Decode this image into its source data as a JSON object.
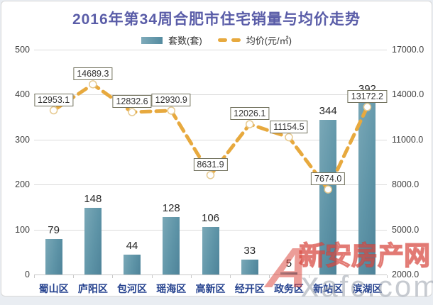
{
  "watermark": {
    "logo_letter": "A",
    "brand": "新安房产网",
    "domain": "xafc.com"
  },
  "chart_data": {
    "type": "bar",
    "title": "2016年第34周合肥市住宅销量与均价走势",
    "title_color": "#5a5da8",
    "categories": [
      "蜀山区",
      "庐阳区",
      "包河区",
      "瑶海区",
      "高新区",
      "经开区",
      "政务区",
      "新站区",
      "滨湖区"
    ],
    "series": [
      {
        "name": "套数(套)",
        "type": "bar",
        "axis": "left",
        "color": "#5F95A8",
        "values": [
          79,
          148,
          44,
          128,
          106,
          33,
          5,
          344,
          392
        ]
      },
      {
        "name": "均价(元/㎡)",
        "type": "line",
        "axis": "right",
        "color": "#E7A93E",
        "values": [
          12953.1,
          14689.3,
          12832.6,
          12930.9,
          8631.9,
          12026.1,
          11154.5,
          7674.0,
          13172.2
        ]
      }
    ],
    "left_axis": {
      "min": 0,
      "max": 500,
      "tick_labels": [
        "0",
        "100",
        "200",
        "300",
        "400",
        "500"
      ]
    },
    "right_axis": {
      "min": 2000,
      "max": 17000,
      "tick_labels": [
        "2000.0",
        "5000.0",
        "8000.0",
        "11000.0",
        "14000.0",
        "17000.0"
      ]
    },
    "grid": true,
    "legend_position": "top"
  }
}
